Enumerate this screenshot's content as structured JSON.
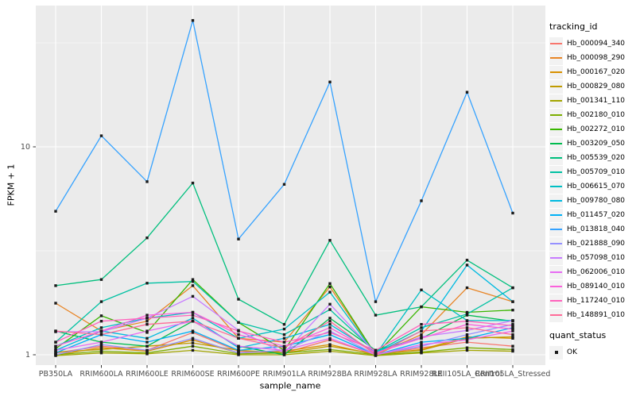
{
  "figure": {
    "background": "#FFFFFF",
    "panel_background": "#EBEBEB",
    "grid_color": "#FFFFFF",
    "tick_mark_color": "#333333",
    "tick_label_color": "#4D4D4D",
    "marker_color": "#1A1A1A"
  },
  "axes": {
    "x_title": "sample_name",
    "y_title": "FPKM + 1",
    "y_tick_labels": [
      "1",
      "10"
    ]
  },
  "legend": {
    "tracking_title": "tracking_id",
    "quant_title": "quant_status",
    "quant_items": [
      {
        "label": "OK",
        "marker": "black-square"
      }
    ]
  },
  "chart_data": {
    "type": "line",
    "title": "",
    "xlabel": "sample_name",
    "ylabel": "FPKM + 1",
    "y_scale": "log10",
    "ylim": [
      0.89,
      53
    ],
    "y_major_ticks": [
      1,
      10
    ],
    "y_minor_ticks": [
      3.1623,
      31.623
    ],
    "grid": true,
    "legend_position": "right",
    "point_marker": "filled-black-square",
    "categories": [
      "PB350LA",
      "RRIM600LA",
      "RRIM600LE",
      "RRIM600SE",
      "RRIM600PE",
      "RRIM901LA",
      "RRIM928BA",
      "RRIM928LA",
      "RRIM928LE",
      "RRII105LA_Control",
      "RRII105LA_Stressed"
    ],
    "series": [
      {
        "name": "Hb_000094_340",
        "color": "#F8766D",
        "values": [
          1.02,
          1.1,
          1.05,
          1.28,
          1.04,
          1.02,
          1.18,
          1.0,
          1.08,
          1.15,
          1.1
        ]
      },
      {
        "name": "Hb_000098_290",
        "color": "#E88526",
        "values": [
          1.77,
          1.3,
          1.45,
          2.15,
          1.2,
          1.15,
          2.12,
          1.0,
          1.25,
          2.1,
          1.8
        ]
      },
      {
        "name": "Hb_000167_020",
        "color": "#D89000",
        "values": [
          1.0,
          1.08,
          1.04,
          1.18,
          1.02,
          1.04,
          1.12,
          1.0,
          1.06,
          1.22,
          1.2
        ]
      },
      {
        "name": "Hb_000829_080",
        "color": "#C09B00",
        "values": [
          1.03,
          1.06,
          1.1,
          1.14,
          1.05,
          1.02,
          1.1,
          1.01,
          1.05,
          1.2,
          1.22
        ]
      },
      {
        "name": "Hb_001341_110",
        "color": "#A3A500",
        "values": [
          0.99,
          1.02,
          1.01,
          1.05,
          1.0,
          1.0,
          1.04,
          0.99,
          1.02,
          1.05,
          1.04
        ]
      },
      {
        "name": "Hb_002180_010",
        "color": "#7CAE00",
        "values": [
          1.0,
          1.04,
          1.02,
          1.1,
          1.01,
          1.02,
          1.06,
          1.0,
          1.03,
          1.08,
          1.06
        ]
      },
      {
        "name": "Hb_002272_010",
        "color": "#39B600",
        "values": [
          1.07,
          1.54,
          1.28,
          2.3,
          1.43,
          1.05,
          2.2,
          1.0,
          1.7,
          1.6,
          1.64
        ]
      },
      {
        "name": "Hb_003209_050",
        "color": "#00BB4E",
        "values": [
          1.3,
          1.15,
          1.1,
          1.45,
          1.1,
          1.0,
          1.5,
          1.05,
          1.2,
          1.55,
          1.45
        ]
      },
      {
        "name": "Hb_005539_020",
        "color": "#00BF7D",
        "values": [
          2.15,
          2.3,
          3.65,
          6.7,
          1.85,
          1.4,
          3.55,
          1.55,
          1.7,
          2.85,
          2.1
        ]
      },
      {
        "name": "Hb_005709_010",
        "color": "#00C1A3",
        "values": [
          1.15,
          1.8,
          2.21,
          2.25,
          1.43,
          1.25,
          1.65,
          1.03,
          1.35,
          1.57,
          2.1
        ]
      },
      {
        "name": "Hb_006615_070",
        "color": "#00BFC4",
        "values": [
          1.1,
          1.35,
          1.5,
          1.6,
          1.2,
          1.33,
          2.0,
          1.0,
          2.05,
          1.46,
          1.46
        ]
      },
      {
        "name": "Hb_009780_080",
        "color": "#00BAE0",
        "values": [
          1.05,
          1.3,
          1.2,
          1.5,
          1.08,
          1.2,
          1.4,
          1.02,
          1.3,
          2.7,
          1.8
        ]
      },
      {
        "name": "Hb_011457_020",
        "color": "#00B0F6",
        "values": [
          1.02,
          1.25,
          1.15,
          1.3,
          1.05,
          1.1,
          1.25,
          1.0,
          1.15,
          1.2,
          1.35
        ]
      },
      {
        "name": "Hb_013818_040",
        "color": "#35A2FF",
        "values": [
          4.9,
          11.3,
          6.8,
          40.5,
          3.6,
          6.6,
          20.5,
          1.8,
          5.5,
          18.3,
          4.8
        ]
      },
      {
        "name": "Hb_021888_090",
        "color": "#9590FF",
        "values": [
          1.0,
          1.12,
          1.05,
          1.2,
          1.02,
          1.05,
          1.3,
          1.0,
          1.1,
          1.25,
          1.4
        ]
      },
      {
        "name": "Hb_057098_010",
        "color": "#C77CFF",
        "values": [
          1.29,
          1.29,
          1.5,
          1.91,
          1.31,
          1.02,
          1.75,
          1.02,
          1.22,
          1.31,
          1.46
        ]
      },
      {
        "name": "Hb_062006_010",
        "color": "#E76BF3",
        "values": [
          1.05,
          1.15,
          1.3,
          1.45,
          1.1,
          1.05,
          1.2,
          1.0,
          1.12,
          1.18,
          1.3
        ]
      },
      {
        "name": "Hb_089140_010",
        "color": "#FA62DB",
        "values": [
          1.1,
          1.3,
          1.55,
          1.6,
          1.25,
          1.1,
          1.35,
          1.02,
          1.2,
          1.4,
          1.33
        ]
      },
      {
        "name": "Hb_117240_010",
        "color": "#FF62BC",
        "values": [
          1.15,
          1.45,
          1.5,
          1.55,
          1.3,
          1.15,
          1.28,
          1.05,
          1.4,
          1.45,
          1.38
        ]
      },
      {
        "name": "Hb_148891_010",
        "color": "#FF6A98",
        "values": [
          1.3,
          1.25,
          1.4,
          1.45,
          1.2,
          1.08,
          1.45,
          1.0,
          1.3,
          1.35,
          1.25
        ]
      }
    ]
  }
}
